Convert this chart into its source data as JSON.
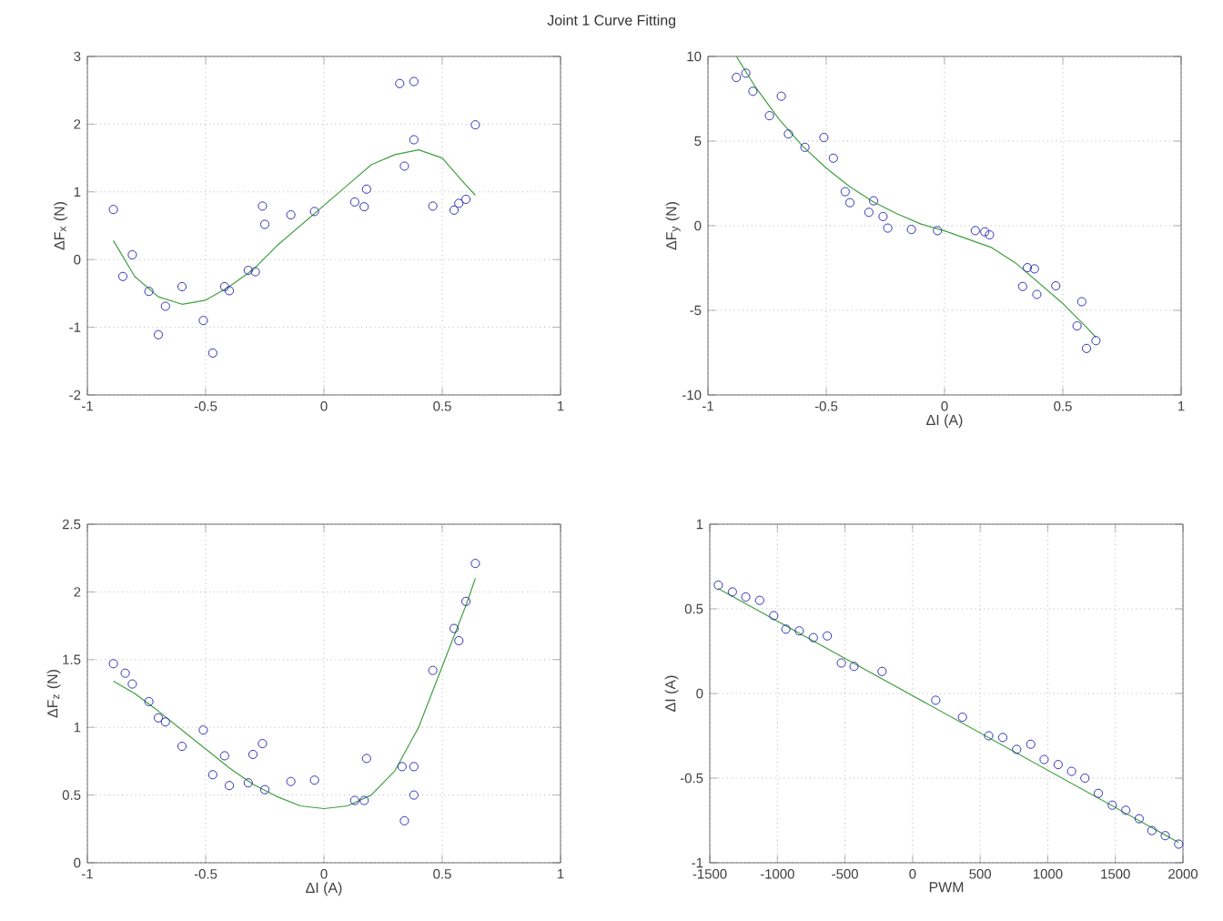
{
  "chart_data": [
    {
      "type": "scatter",
      "title": "Joint 1 Curve Fitting",
      "ylabel": "ΔF$_{x}$ (N)",
      "xlim": [
        -1,
        1
      ],
      "ylim": [
        -2,
        3
      ],
      "xticks": [
        -1,
        -0.5,
        0,
        0.5,
        1
      ],
      "yticks": [
        -2,
        -1,
        0,
        1,
        2,
        3
      ],
      "grid": true,
      "series": [
        {
          "type": "scatter",
          "marker": "circle",
          "color": "#3333b3",
          "x": [
            -0.89,
            -0.85,
            -0.81,
            -0.74,
            -0.7,
            -0.67,
            -0.6,
            -0.51,
            -0.47,
            -0.42,
            -0.4,
            -0.32,
            -0.29,
            -0.26,
            -0.25,
            -0.14,
            -0.04,
            0.13,
            0.17,
            0.18,
            0.32,
            0.34,
            0.38,
            0.38,
            0.46,
            0.55,
            0.57,
            0.6,
            0.64
          ],
          "values": [
            0.74,
            -0.25,
            0.07,
            -0.47,
            -1.11,
            -0.69,
            -0.4,
            -0.9,
            -1.38,
            -0.4,
            -0.46,
            -0.16,
            -0.18,
            0.79,
            0.52,
            0.66,
            0.71,
            0.85,
            0.78,
            1.04,
            2.6,
            1.38,
            2.63,
            1.77,
            0.79,
            0.73,
            0.83,
            0.89,
            1.99
          ]
        },
        {
          "type": "line",
          "marker": "none",
          "color": "#3f9f3f",
          "x": [
            -0.89,
            -0.8,
            -0.7,
            -0.6,
            -0.5,
            -0.4,
            -0.3,
            -0.2,
            -0.1,
            0,
            0.1,
            0.2,
            0.3,
            0.4,
            0.5,
            0.6,
            0.64
          ],
          "values": [
            0.28,
            -0.25,
            -0.55,
            -0.66,
            -0.6,
            -0.4,
            -0.15,
            0.2,
            0.5,
            0.8,
            1.1,
            1.4,
            1.55,
            1.62,
            1.5,
            1.1,
            0.95
          ]
        }
      ]
    },
    {
      "type": "scatter",
      "ylabel": "ΔF$_{y}$ (N)",
      "xlabel": "ΔI (A)",
      "xlim": [
        -1,
        1
      ],
      "ylim": [
        -10,
        10
      ],
      "xticks": [
        -1,
        -0.5,
        0,
        0.5,
        1
      ],
      "yticks": [
        -10,
        -5,
        0,
        5,
        10
      ],
      "grid": true,
      "series": [
        {
          "type": "scatter",
          "marker": "circle",
          "color": "#3333b3",
          "x": [
            -0.88,
            -0.84,
            -0.81,
            -0.74,
            -0.69,
            -0.66,
            -0.59,
            -0.51,
            -0.47,
            -0.42,
            -0.4,
            -0.32,
            -0.3,
            -0.26,
            -0.24,
            -0.14,
            -0.03,
            0.13,
            0.17,
            0.19,
            0.35,
            0.38,
            0.33,
            0.39,
            0.47,
            0.58,
            0.56,
            0.6,
            0.64
          ],
          "values": [
            8.76,
            9.01,
            7.94,
            6.5,
            7.65,
            5.42,
            4.63,
            5.21,
            3.99,
            2.01,
            1.36,
            0.79,
            1.47,
            0.54,
            -0.14,
            -0.22,
            -0.29,
            -0.29,
            -0.36,
            -0.54,
            -2.48,
            -2.55,
            -3.59,
            -4.06,
            -3.55,
            -4.49,
            -5.92,
            -7.25,
            -6.79
          ]
        },
        {
          "type": "line",
          "marker": "none",
          "color": "#3f9f3f",
          "x": [
            -0.88,
            -0.8,
            -0.7,
            -0.6,
            -0.5,
            -0.4,
            -0.3,
            -0.2,
            -0.1,
            0,
            0.1,
            0.2,
            0.3,
            0.4,
            0.5,
            0.6,
            0.64
          ],
          "values": [
            10,
            8.2,
            6.3,
            4.7,
            3.4,
            2.3,
            1.4,
            0.7,
            0.1,
            -0.3,
            -0.8,
            -1.3,
            -2.2,
            -3.4,
            -4.6,
            -6.0,
            -6.6
          ]
        }
      ]
    },
    {
      "type": "scatter",
      "ylabel": "ΔF$_{z}$ (N)",
      "xlabel": "ΔI (A)",
      "xlim": [
        -1,
        1
      ],
      "ylim": [
        0,
        2.5
      ],
      "xticks": [
        -1,
        -0.5,
        0,
        0.5,
        1
      ],
      "yticks": [
        0,
        0.5,
        1,
        1.5,
        2,
        2.5
      ],
      "grid": true,
      "series": [
        {
          "type": "scatter",
          "marker": "circle",
          "color": "#3333b3",
          "x": [
            -0.89,
            -0.84,
            -0.81,
            -0.74,
            -0.7,
            -0.67,
            -0.6,
            -0.51,
            -0.47,
            -0.42,
            -0.4,
            -0.32,
            -0.3,
            -0.26,
            -0.25,
            -0.14,
            -0.04,
            0.13,
            0.17,
            0.18,
            0.33,
            0.34,
            0.38,
            0.38,
            0.46,
            0.55,
            0.57,
            0.6,
            0.64
          ],
          "values": [
            1.47,
            1.4,
            1.32,
            1.19,
            1.07,
            1.04,
            0.86,
            0.98,
            0.65,
            0.79,
            0.57,
            0.59,
            0.8,
            0.88,
            0.54,
            0.6,
            0.61,
            0.46,
            0.46,
            0.77,
            0.71,
            0.31,
            0.71,
            0.5,
            1.42,
            1.73,
            1.64,
            1.93,
            2.21
          ]
        },
        {
          "type": "line",
          "marker": "none",
          "color": "#3f9f3f",
          "x": [
            -0.89,
            -0.8,
            -0.7,
            -0.6,
            -0.5,
            -0.4,
            -0.3,
            -0.2,
            -0.1,
            0,
            0.1,
            0.2,
            0.3,
            0.4,
            0.5,
            0.6,
            0.64
          ],
          "values": [
            1.34,
            1.25,
            1.12,
            0.98,
            0.84,
            0.7,
            0.58,
            0.49,
            0.42,
            0.4,
            0.42,
            0.5,
            0.68,
            1.0,
            1.45,
            1.9,
            2.1
          ]
        }
      ]
    },
    {
      "type": "scatter",
      "ylabel": "ΔI (A)",
      "xlabel": "PWM",
      "xlim": [
        -1500,
        2000
      ],
      "ylim": [
        -1,
        1
      ],
      "xticks": [
        -1500,
        -1000,
        -500,
        0,
        500,
        1000,
        1500,
        2000
      ],
      "yticks": [
        -1,
        -0.5,
        0,
        0.5,
        1
      ],
      "grid": true,
      "series": [
        {
          "type": "scatter",
          "marker": "circle",
          "color": "#3333b3",
          "x": [
            -1437,
            -1333,
            -1234,
            -1131,
            -1027,
            -937,
            -838,
            -734,
            -631,
            -527,
            -433,
            -226,
            171,
            369,
            563,
            667,
            770,
            874,
            973,
            1077,
            1176,
            1275,
            1374,
            1477,
            1577,
            1676,
            1770,
            1869,
            1968
          ],
          "values": [
            0.64,
            0.6,
            0.57,
            0.55,
            0.46,
            0.38,
            0.37,
            0.33,
            0.34,
            0.18,
            0.16,
            0.13,
            -0.04,
            -0.14,
            -0.25,
            -0.26,
            -0.33,
            -0.3,
            -0.39,
            -0.42,
            -0.46,
            -0.5,
            -0.59,
            -0.66,
            -0.69,
            -0.74,
            -0.81,
            -0.84,
            -0.89
          ]
        },
        {
          "type": "line",
          "marker": "none",
          "color": "#3f9f3f",
          "x": [
            -1437,
            1968
          ],
          "values": [
            0.62,
            -0.88
          ]
        }
      ]
    }
  ]
}
